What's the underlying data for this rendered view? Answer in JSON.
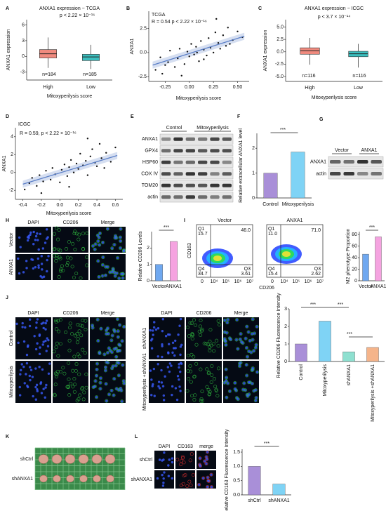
{
  "panel_labels": [
    "A",
    "B",
    "C",
    "D",
    "E",
    "F",
    "G",
    "H",
    "I",
    "J",
    "K",
    "L"
  ],
  "chart_data": [
    {
      "type": "box",
      "title": "ANXA1 expression − TCGA",
      "ylabel": "ANXA1 expression",
      "xlabel": "Mitoxyperilysis score",
      "categories": [
        "High",
        "Low"
      ],
      "whislo": [
        -2.2,
        -2.4
      ],
      "q1": [
        -0.3,
        -0.8
      ],
      "median": [
        0.5,
        -0.1
      ],
      "q3": [
        1.3,
        0.4
      ],
      "whishi": [
        3.6,
        2.2
      ],
      "colors": [
        "#f08a7e",
        "#3bbfbf"
      ],
      "ylim": [
        -4.5,
        7
      ],
      "yticks": [
        -3,
        0,
        3,
        6
      ],
      "annotations": [
        "p < 2.22 × 10⁻¹⁶",
        "n=184",
        "n=185"
      ]
    },
    {
      "type": "scatter",
      "title": "TCGA",
      "ylabel": "ANXA1",
      "xlabel": "Mitoxyperilysis score",
      "x": [
        -0.35,
        -0.3,
        -0.28,
        -0.22,
        -0.2,
        -0.15,
        -0.12,
        -0.1,
        -0.05,
        -0.02,
        0.0,
        0.02,
        0.05,
        0.07,
        0.1,
        0.12,
        0.15,
        0.18,
        0.2,
        0.22,
        0.25,
        0.27,
        0.3,
        0.32,
        0.35,
        0.38,
        0.4,
        0.45,
        0.5,
        0.55,
        -0.25,
        0.08,
        0.28,
        0.15,
        -0.08,
        0.42
      ],
      "values": [
        -1.8,
        -0.5,
        -2.2,
        -1.0,
        0.2,
        -1.5,
        -0.6,
        0.4,
        -1.2,
        0.1,
        -0.4,
        0.9,
        -0.2,
        0.6,
        -0.9,
        1.2,
        0.3,
        -0.3,
        1.5,
        0.5,
        0.0,
        2.1,
        1.0,
        0.4,
        1.8,
        0.7,
        2.6,
        1.3,
        2.2,
        1.6,
        -1.3,
        0.0,
        3.5,
        -0.7,
        -2.4,
        0.9
      ],
      "color": "#111111",
      "trend_x": [
        -0.38,
        0.57
      ],
      "trend_y": [
        -1.3,
        1.7
      ],
      "trend_color": "#5b7fc7",
      "xlim": [
        -0.42,
        0.62
      ],
      "ylim": [
        -3,
        4.3
      ],
      "xticks": [
        -0.25,
        {
          "value": 0,
          "label": "0.00"
        },
        0.25,
        {
          "value": 0.5,
          "label": "0.50"
        }
      ],
      "yticks": [
        -2.5,
        {
          "value": 0,
          "label": "0.0"
        },
        2.5
      ],
      "annotations": [
        "R = 0.54   p < 2.22 × 10⁻¹⁶"
      ]
    },
    {
      "type": "box",
      "title": "ANXA1 expression − ICGC",
      "ylabel": "ANXA1 expression",
      "xlabel": "Mitoxyperilysis score",
      "categories": [
        "High",
        "Low"
      ],
      "whislo": [
        -2.6,
        -3.2
      ],
      "q1": [
        -0.5,
        -1.0
      ],
      "median": [
        0.2,
        -0.4
      ],
      "q3": [
        0.8,
        0.1
      ],
      "whishi": [
        2.8,
        1.6
      ],
      "colors": [
        "#f08a7e",
        "#3bbfbf"
      ],
      "ylim": [
        -6,
        6.5
      ],
      "yticks": [
        {
          "value": -5,
          "label": "-5.0"
        },
        -2.5,
        {
          "value": 0,
          "label": "0.0"
        },
        2.5,
        {
          "value": 5,
          "label": "5.0"
        }
      ],
      "annotations": [
        "p < 3.7 × 10⁻¹⁴",
        "n=116",
        "n=116"
      ]
    },
    {
      "type": "scatter",
      "title": "ICGC",
      "ylabel": "ANXA1",
      "xlabel": "Mitoxyperilysis score",
      "x": [
        -0.38,
        -0.33,
        -0.3,
        -0.25,
        -0.22,
        -0.18,
        -0.15,
        -0.1,
        -0.08,
        -0.05,
        0.0,
        0.02,
        0.05,
        0.08,
        0.1,
        0.12,
        0.15,
        0.18,
        0.2,
        0.22,
        0.25,
        0.28,
        0.3,
        0.33,
        0.35,
        0.38,
        0.4,
        0.43,
        0.45,
        0.5,
        0.55,
        0.6,
        -0.2,
        0.1,
        0.3,
        0.48
      ],
      "values": [
        -1.9,
        -1.2,
        -0.6,
        -1.5,
        -0.3,
        -1.0,
        0.2,
        -0.8,
        0.5,
        -0.2,
        -1.1,
        0.3,
        0.9,
        -0.4,
        0.6,
        1.4,
        0.0,
        1.0,
        0.4,
        2.1,
        0.8,
        1.3,
        -0.3,
        1.8,
        2.6,
        1.1,
        0.7,
        3.2,
        1.6,
        2.2,
        1.2,
        2.8,
        -2.3,
        -1.6,
        3.8,
        0.5
      ],
      "color": "#111111",
      "trend_x": [
        -0.4,
        0.62
      ],
      "trend_y": [
        -1.3,
        1.9
      ],
      "trend_color": "#5b7fc7",
      "xlim": [
        -0.48,
        0.68
      ],
      "ylim": [
        -3,
        5
      ],
      "xticks": [
        -0.4,
        -0.2,
        {
          "value": 0,
          "label": "0.0"
        },
        0.2,
        0.4,
        0.6
      ],
      "yticks": [
        -2,
        0,
        2,
        4
      ],
      "annotations": [
        "R = 0.59,  p < 2.22 × 10⁻¹⁶"
      ]
    },
    {
      "type": "bar",
      "ylabel": "Relative extracellular ANXA1 level",
      "categories": [
        "Control",
        "Mitoxyperilysis"
      ],
      "values": [
        1.0,
        1.85
      ],
      "colors": [
        "#a98fd8",
        "#7fd3f5"
      ],
      "ylim": [
        0,
        2.6
      ],
      "yticks": [
        0,
        1,
        2
      ],
      "annotations": [
        "***"
      ]
    },
    {
      "type": "bar",
      "ylabel": "Relative CD206 Levels",
      "categories": [
        "Vector",
        "ANXA1"
      ],
      "values": [
        1.0,
        2.4
      ],
      "colors": [
        "#6fa8f0",
        "#f5a3e0"
      ],
      "ylim": [
        0,
        3
      ],
      "yticks": [
        0,
        1,
        2
      ],
      "annotations": [
        "***"
      ]
    },
    {
      "type": "bar",
      "ylabel": "M2 phenotype Proportion",
      "categories": [
        "Vector",
        "ANXA1"
      ],
      "values": [
        46,
        76
      ],
      "colors": [
        "#6fa8f0",
        "#f5a3e0"
      ],
      "ylim": [
        0,
        85
      ],
      "yticks": [
        0,
        20,
        40,
        60,
        80
      ],
      "annotations": [
        "***"
      ]
    },
    {
      "type": "bar",
      "ylabel": "Relative CD206 Fluorescence Intensity",
      "categories": [
        "Control",
        "Mitoxyperilysis",
        "shANXA1",
        "Mitoxyperilysis +shANXA1"
      ],
      "values": [
        1.0,
        2.3,
        0.55,
        0.8
      ],
      "colors": [
        "#a98fd8",
        "#7fd3f5",
        "#8ee0d0",
        "#f5b48a"
      ],
      "ylim": [
        0,
        3
      ],
      "yticks": [
        0,
        1,
        2,
        3
      ],
      "annotations": [
        "***",
        "***",
        "***"
      ]
    },
    {
      "type": "bar",
      "ylabel": "Relative CD163 Fluorescence Intensity",
      "categories": [
        "shCtrl",
        "shANXA1"
      ],
      "values": [
        1.0,
        0.38
      ],
      "colors": [
        "#a98fd8",
        "#7fd3f5"
      ],
      "ylim": [
        0,
        1.6
      ],
      "yticks": [
        {
          "value": 0,
          "label": "0.0"
        },
        0.5,
        {
          "value": 1,
          "label": "1.0"
        },
        1.5
      ],
      "annotations": [
        "***"
      ]
    }
  ],
  "blot_E": {
    "groups": [
      "Control",
      "Mitoxyperilysis"
    ],
    "rows": [
      "ANXA1",
      "GPX4",
      "HSP60",
      "COX IV",
      "TOM20",
      "actin"
    ]
  },
  "blot_G": {
    "groups": [
      "Vector",
      "ANXA1"
    ],
    "rows": [
      "ANXA1",
      "actin"
    ]
  },
  "images_H": {
    "columns": [
      "DAPI",
      "CD206",
      "Merge"
    ],
    "rows": [
      "Vector",
      "ANXA1"
    ]
  },
  "flow_I": {
    "ylabel": "CD163",
    "xlabel": "CD206",
    "xticks": [
      "0",
      "10⁴",
      "10⁵",
      "10⁶",
      "10⁷"
    ],
    "plots": [
      {
        "title": "Vector",
        "q1_label": "Q1",
        "q1": "15.7",
        "q2": "46.0",
        "q3_label": "Q3",
        "q3": "3.61",
        "q4_label": "Q4",
        "q4": "34.7"
      },
      {
        "title": "ANXA1",
        "q1_label": "Q1",
        "q1": "11.0",
        "q2": "71.0",
        "q3_label": "Q3",
        "q3": "2.62",
        "q4_label": "Q4",
        "q4": "15.4"
      }
    ]
  },
  "images_J1": {
    "columns": [
      "DAPI",
      "CD206",
      "Merge"
    ],
    "rows": [
      "Control",
      "Mitoxyperilysis"
    ]
  },
  "images_J2": {
    "columns": [
      "DAPI",
      "CD206",
      "Merge"
    ],
    "rows": [
      "shANXA1",
      "Mitoxyperilysis +shANXA1"
    ]
  },
  "photo_K": {
    "rows": [
      "shCtrl",
      "shANXA1"
    ]
  },
  "images_L": {
    "columns": [
      "DAPI",
      "CD163",
      "merge"
    ],
    "rows": [
      "shCtrl",
      "shANXA1"
    ]
  }
}
